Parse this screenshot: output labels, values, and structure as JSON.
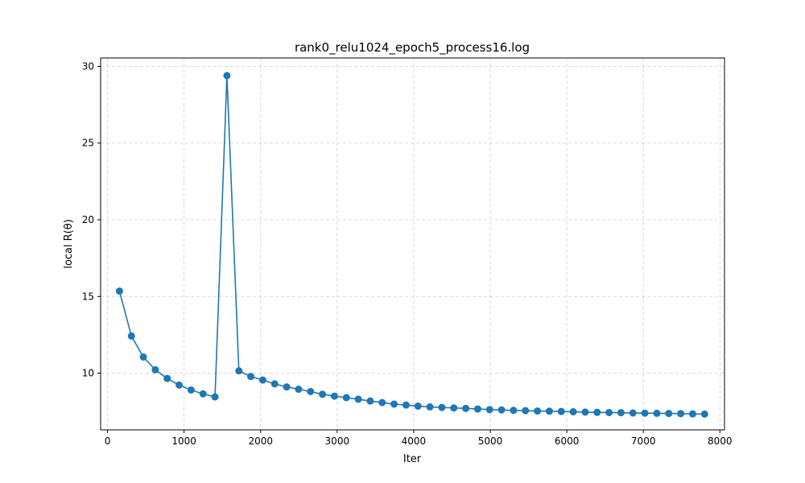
{
  "chart_data": {
    "type": "line",
    "title": "rank0_relu1024_epoch5_process16.log",
    "xlabel": "Iter",
    "ylabel": "local R(θ)",
    "xlim": [
      -90,
      8060
    ],
    "ylim": [
      6.3,
      30.55
    ],
    "xticks": [
      0,
      1000,
      2000,
      3000,
      4000,
      5000,
      6000,
      7000,
      8000
    ],
    "yticks": [
      10,
      15,
      20,
      25,
      30
    ],
    "grid": true,
    "color": "#1f77b4",
    "marker": "circle",
    "series": [
      {
        "x": [
          156,
          312,
          468,
          624,
          780,
          936,
          1092,
          1248,
          1404,
          1560,
          1716,
          1872,
          2028,
          2184,
          2340,
          2496,
          2652,
          2808,
          2964,
          3120,
          3276,
          3432,
          3588,
          3744,
          3900,
          4056,
          4212,
          4368,
          4524,
          4680,
          4836,
          4992,
          5148,
          5304,
          5460,
          5616,
          5772,
          5928,
          6084,
          6240,
          6396,
          6552,
          6708,
          6864,
          7020,
          7176,
          7332,
          7488,
          7644,
          7800
        ],
        "values": [
          15.35,
          12.42,
          11.05,
          10.22,
          9.65,
          9.22,
          8.9,
          8.65,
          8.45,
          29.4,
          10.15,
          9.78,
          9.55,
          9.3,
          9.1,
          8.95,
          8.8,
          8.62,
          8.5,
          8.4,
          8.3,
          8.18,
          8.08,
          7.98,
          7.92,
          7.85,
          7.8,
          7.76,
          7.73,
          7.7,
          7.66,
          7.62,
          7.6,
          7.57,
          7.55,
          7.53,
          7.52,
          7.5,
          7.48,
          7.46,
          7.44,
          7.43,
          7.42,
          7.4,
          7.39,
          7.38,
          7.37,
          7.36,
          7.34,
          7.33
        ]
      }
    ]
  }
}
